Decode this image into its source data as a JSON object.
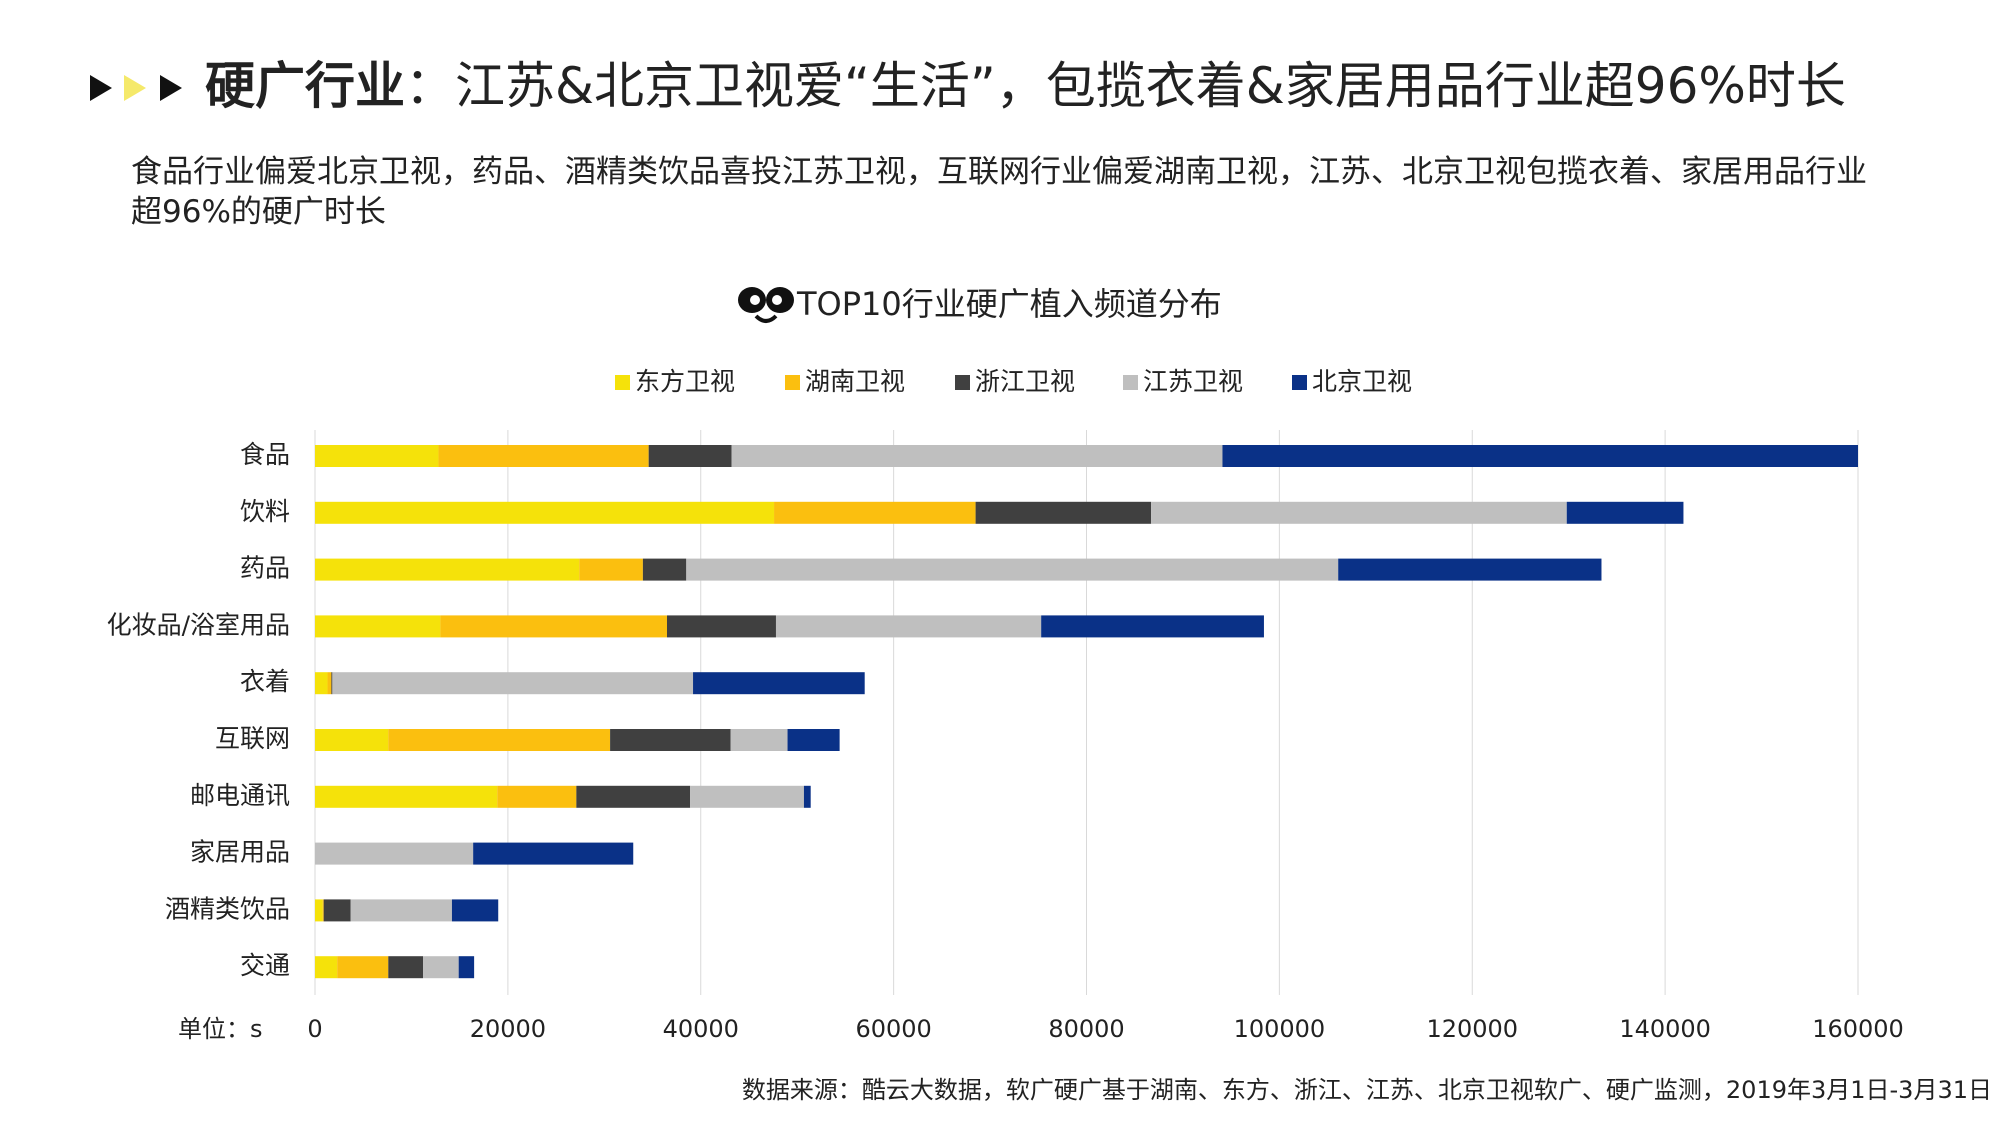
{
  "header": {
    "title_bold": "硬广行业",
    "title_rest": "：江苏&北京卫视爱“生活”，包揽衣着&家居用品行业超96%时长",
    "subtitle": "食品行业偏爱北京卫视，药品、酒精类饮品喜投江苏卫视，互联网行业偏爱湖南卫视，江苏、北京卫视包揽衣着、家居用品行业超96%的硬广时长"
  },
  "chart_data": {
    "type": "stacked_barh",
    "title": "TOP10行业硬广植入频道分布",
    "categories": [
      "食品",
      "饮料",
      "药品",
      "化妆品/浴室用品",
      "衣着",
      "互联网",
      "邮电通讯",
      "家居用品",
      "酒精类饮品",
      "交通"
    ],
    "series": [
      {
        "name": "东方卫视",
        "color": "#f5e20a",
        "values": [
          12800,
          47600,
          27400,
          13000,
          1300,
          7600,
          18900,
          0,
          800,
          2300
        ]
      },
      {
        "name": "湖南卫视",
        "color": "#fbbf0f",
        "values": [
          21800,
          20900,
          6600,
          23500,
          400,
          23000,
          8200,
          0,
          100,
          5300
        ]
      },
      {
        "name": "浙江卫视",
        "color": "#404040",
        "values": [
          8600,
          18200,
          4500,
          11300,
          100,
          12500,
          11800,
          0,
          2800,
          3600
        ]
      },
      {
        "name": "江苏卫视",
        "color": "#bfbfbf",
        "values": [
          50900,
          43100,
          67600,
          27500,
          37400,
          5900,
          11800,
          16400,
          10500,
          3700
        ]
      },
      {
        "name": "北京卫视",
        "color": "#0a3187",
        "values": [
          65900,
          12100,
          27300,
          23100,
          17800,
          5400,
          700,
          16600,
          4800,
          1600
        ]
      }
    ],
    "xlim": [
      0,
      160000
    ],
    "xticks": [
      0,
      20000,
      40000,
      60000,
      80000,
      100000,
      120000,
      140000,
      160000
    ],
    "grid": true,
    "legend": "top",
    "unit_label": "单位：s",
    "source": "数据来源：酷云大数据，软广硬广基于湖南、东方、浙江、江苏、北京卫视软广、硬广监测，2019年3月1日-3月31日"
  }
}
